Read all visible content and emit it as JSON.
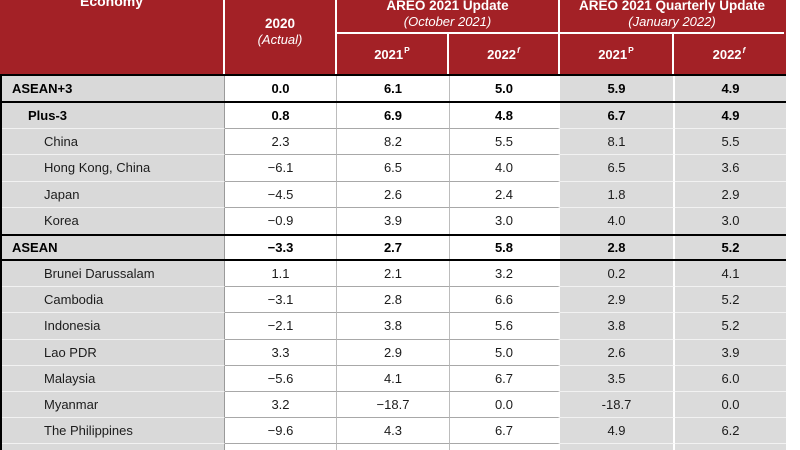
{
  "colors": {
    "header_red": "#A32126",
    "economy_column_gray": "#D9D9D9",
    "quarterly_columns_gray": "#DBDBDB",
    "section_line_black": "#000000",
    "row_divider_gray": "#A8A8A8",
    "header_text": "#FFFFFF"
  },
  "table": {
    "header": {
      "economy_label": "Economy",
      "col_2020": {
        "line1": "2020",
        "line2": "(Actual)"
      },
      "groups": [
        {
          "title": "AREO 2021 Update",
          "subtitle": "(October 2021)",
          "cols": [
            {
              "year": "2021",
              "sup": "P"
            },
            {
              "year": "2022",
              "sup": "f"
            }
          ]
        },
        {
          "title": "AREO 2021 Quarterly Update",
          "subtitle": "(January 2022)",
          "cols": [
            {
              "year": "2021",
              "sup": "P"
            },
            {
              "year": "2022",
              "sup": "f"
            }
          ]
        }
      ]
    },
    "rows": [
      {
        "label": "ASEAN+3",
        "indent": 0,
        "bold": true,
        "values": [
          "0.0",
          "6.1",
          "5.0",
          "5.9",
          "4.9"
        ],
        "border_bottom": "thick"
      },
      {
        "label": "Plus-3",
        "indent": 1,
        "bold": true,
        "values": [
          "0.8",
          "6.9",
          "4.8",
          "6.7",
          "4.9"
        ]
      },
      {
        "label": "China",
        "indent": 2,
        "bold": false,
        "values": [
          "2.3",
          "8.2",
          "5.5",
          "8.1",
          "5.5"
        ]
      },
      {
        "label": "Hong Kong, China",
        "indent": 2,
        "bold": false,
        "values": [
          "−6.1",
          "6.5",
          "4.0",
          "6.5",
          "3.6"
        ]
      },
      {
        "label": "Japan",
        "indent": 2,
        "bold": false,
        "values": [
          "−4.5",
          "2.6",
          "2.4",
          "1.8",
          "2.9"
        ]
      },
      {
        "label": "Korea",
        "indent": 2,
        "bold": false,
        "values": [
          "−0.9",
          "3.9",
          "3.0",
          "4.0",
          "3.0"
        ],
        "divider": false
      },
      {
        "label": "ASEAN",
        "indent": 0,
        "bold": true,
        "values": [
          "−3.3",
          "2.7",
          "5.8",
          "2.8",
          "5.2"
        ],
        "border_top": "thick",
        "border_bottom": "thick"
      },
      {
        "label": "Brunei Darussalam",
        "indent": 2,
        "bold": false,
        "values": [
          "1.1",
          "2.1",
          "3.2",
          "0.2",
          "4.1"
        ]
      },
      {
        "label": "Cambodia",
        "indent": 2,
        "bold": false,
        "values": [
          "−3.1",
          "2.8",
          "6.6",
          "2.9",
          "5.2"
        ]
      },
      {
        "label": "Indonesia",
        "indent": 2,
        "bold": false,
        "values": [
          "−2.1",
          "3.8",
          "5.6",
          "3.8",
          "5.2"
        ]
      },
      {
        "label": "Lao PDR",
        "indent": 2,
        "bold": false,
        "values": [
          "3.3",
          "2.9",
          "5.0",
          "2.6",
          "3.9"
        ]
      },
      {
        "label": "Malaysia",
        "indent": 2,
        "bold": false,
        "values": [
          "−5.6",
          "4.1",
          "6.7",
          "3.5",
          "6.0"
        ]
      },
      {
        "label": "Myanmar",
        "indent": 2,
        "bold": false,
        "values": [
          "3.2",
          "−18.7",
          "0.0",
          "-18.7",
          "0.0"
        ]
      },
      {
        "label": "The Philippines",
        "indent": 2,
        "bold": false,
        "values": [
          "−9.6",
          "4.3",
          "6.7",
          "4.9",
          "6.2"
        ]
      },
      {
        "label": "",
        "indent": 0,
        "bold": false,
        "values": [
          "",
          "",
          "",
          "",
          ""
        ],
        "partial": true
      }
    ]
  }
}
